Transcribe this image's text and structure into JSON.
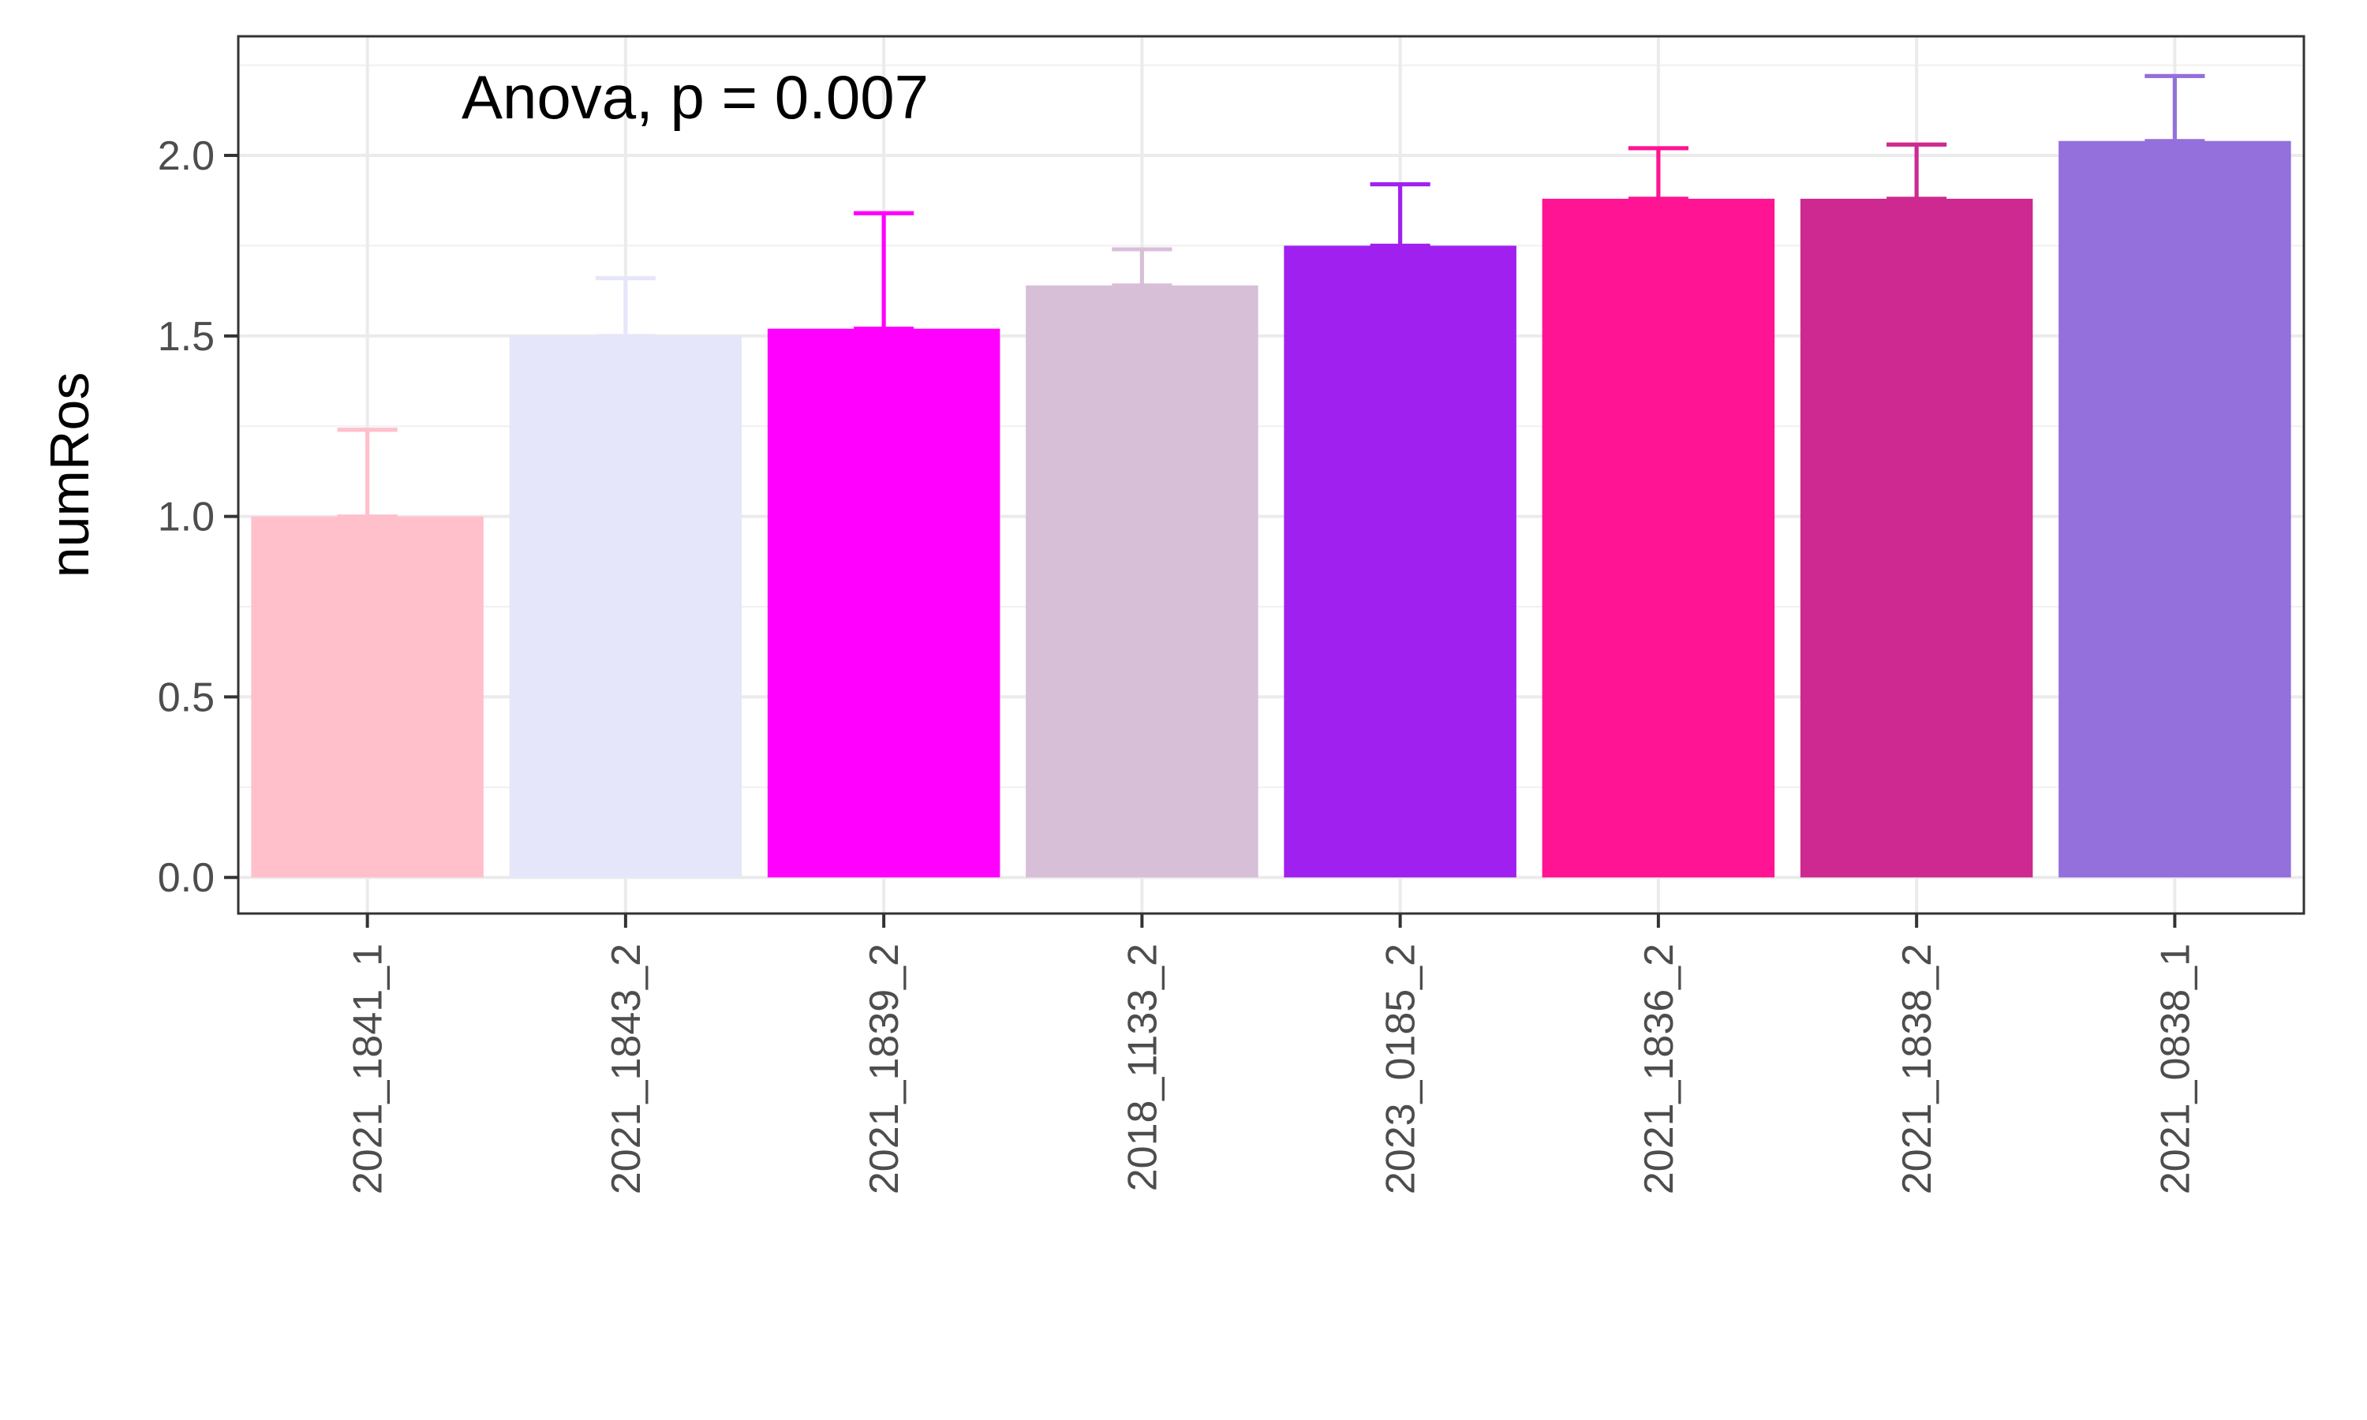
{
  "chart_data": {
    "type": "bar",
    "title": "",
    "xlabel": "",
    "ylabel": "numRos",
    "annotation": "Anova, p = 0.007",
    "categories": [
      "2021_1841_1",
      "2021_1843_2",
      "2021_1839_2",
      "2018_1133_2",
      "2023_0185_2",
      "2021_1836_2",
      "2021_1838_2",
      "2021_0838_1"
    ],
    "values": [
      1.0,
      1.5,
      1.52,
      1.64,
      1.75,
      1.88,
      1.88,
      2.04
    ],
    "error_upper": [
      1.24,
      1.66,
      1.84,
      1.74,
      1.92,
      2.02,
      2.03,
      2.22
    ],
    "colors": [
      "#ffc0cb",
      "#e6e6fa",
      "#ff00ff",
      "#d8bfd8",
      "#a020f0",
      "#ff1493",
      "#cd2990",
      "#9370db"
    ],
    "ylim": [
      -0.1,
      2.33
    ],
    "yticks": [
      "0.0",
      "0.5",
      "1.0",
      "1.5",
      "2.0"
    ],
    "grid": true,
    "legend": "none"
  }
}
